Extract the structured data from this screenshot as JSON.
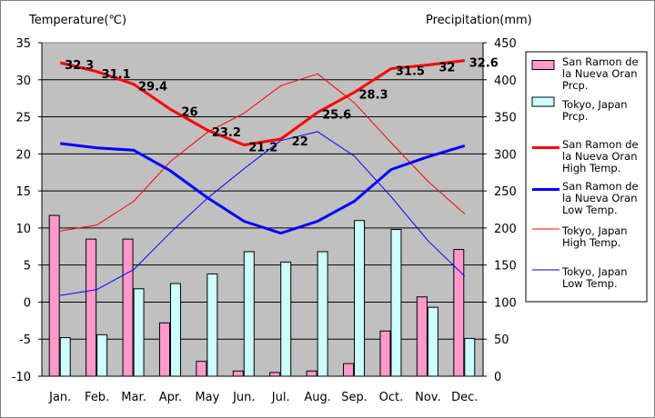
{
  "chart_data": {
    "type": "bar+line",
    "title": "",
    "categories": [
      "Jan.",
      "Feb.",
      "Mar.",
      "Apr.",
      "May",
      "Jun.",
      "Jul.",
      "Aug.",
      "Sep.",
      "Oct.",
      "Nov.",
      "Dec."
    ],
    "y_left": {
      "label": "Temperature(℃)",
      "min": -10,
      "max": 35,
      "step": 5
    },
    "y_right": {
      "label": "Precipitation(mm)",
      "min": 0,
      "max": 450,
      "step": 50
    },
    "bar_series": [
      {
        "name": "San Ramon de la Nueva Oran Prcp.",
        "legend_lines": [
          "San Ramon de",
          "la Nueva Oran",
          "Prcp."
        ],
        "color": "#ff99cc",
        "values": [
          217,
          185,
          185,
          72,
          20,
          7,
          5,
          7,
          17,
          61,
          107,
          171
        ]
      },
      {
        "name": "Tokyo, Japan Prcp.",
        "legend_lines": [
          "Tokyo, Japan",
          "Prcp."
        ],
        "color": "#ccffff",
        "values": [
          52,
          56,
          118,
          125,
          138,
          168,
          154,
          168,
          210,
          198,
          93,
          51
        ]
      }
    ],
    "line_series": [
      {
        "name": "San Ramon de la Nueva Oran High Temp.",
        "legend_lines": [
          "San Ramon de",
          "la Nueva Oran",
          "High Temp."
        ],
        "color": "#ff0000",
        "width": 3,
        "values": [
          32.3,
          31.1,
          29.4,
          26,
          23.2,
          21.2,
          22,
          25.6,
          28.3,
          31.5,
          32,
          32.6
        ],
        "labels": [
          "32.3",
          "31.1",
          "29.4",
          "26",
          "23.2",
          "21.2",
          "22",
          "25.6",
          "28.3",
          "31.5",
          "32",
          "32.6"
        ]
      },
      {
        "name": "San Ramon de la Nueva Oran Low Temp.",
        "legend_lines": [
          "San Ramon de",
          "la Nueva Oran",
          "Low Temp."
        ],
        "color": "#0000ff",
        "width": 3,
        "values": [
          21.4,
          20.8,
          20.5,
          17.7,
          14.1,
          10.9,
          9.3,
          10.9,
          13.6,
          17.9,
          19.6,
          21.1
        ]
      },
      {
        "name": "Tokyo, Japan High Temp.",
        "legend_lines": [
          "Tokyo, Japan",
          "High Temp."
        ],
        "color": "#ff0000",
        "width": 1,
        "values": [
          9.6,
          10.4,
          13.6,
          19.0,
          22.9,
          25.5,
          29.2,
          30.8,
          26.9,
          21.5,
          16.3,
          11.9
        ]
      },
      {
        "name": "Tokyo, Japan Low Temp.",
        "legend_lines": [
          "Tokyo, Japan",
          "Low Temp."
        ],
        "color": "#0000ff",
        "width": 1,
        "values": [
          0.9,
          1.7,
          4.4,
          9.4,
          14.0,
          18.0,
          21.8,
          23.0,
          19.7,
          14.2,
          8.3,
          3.5
        ]
      }
    ],
    "grid": true,
    "plot_background": "#c0c0c0",
    "legend_position": "right"
  }
}
